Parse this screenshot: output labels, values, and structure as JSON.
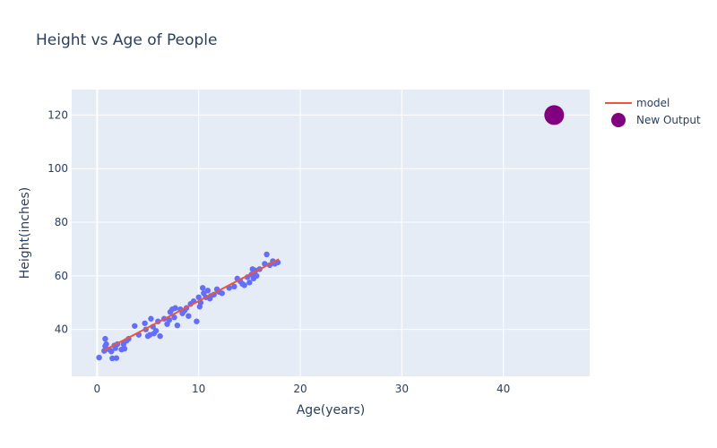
{
  "chart_data": {
    "type": "scatter",
    "title": "Height vs Age of People",
    "xlabel": "Age(years)",
    "ylabel": "Height(inches)",
    "xlim": [
      -2.5,
      48.5
    ],
    "ylim": [
      22.5,
      129.5
    ],
    "xticks": [
      0,
      10,
      20,
      30,
      40
    ],
    "yticks": [
      40,
      60,
      80,
      100,
      120
    ],
    "grid": true,
    "legend_position": "top-right",
    "plot_background": "#E5ECF6",
    "series": [
      {
        "name": "",
        "kind": "scatter",
        "color": "#636EFA",
        "points": [
          [
            0.2,
            29.5
          ],
          [
            0.7,
            32.0
          ],
          [
            0.8,
            33.8
          ],
          [
            0.8,
            36.5
          ],
          [
            0.9,
            34.5
          ],
          [
            1.2,
            32.5
          ],
          [
            1.4,
            31.8
          ],
          [
            1.5,
            29.2
          ],
          [
            1.7,
            34.0
          ],
          [
            1.8,
            33.0
          ],
          [
            1.9,
            29.3
          ],
          [
            2.0,
            34.5
          ],
          [
            2.4,
            32.5
          ],
          [
            2.6,
            34.5
          ],
          [
            2.7,
            32.8
          ],
          [
            2.9,
            35.8
          ],
          [
            3.1,
            36.5
          ],
          [
            3.7,
            41.3
          ],
          [
            4.1,
            38.0
          ],
          [
            4.7,
            42.3
          ],
          [
            4.8,
            40.0
          ],
          [
            5.0,
            37.5
          ],
          [
            5.2,
            38.0
          ],
          [
            5.3,
            44.0
          ],
          [
            5.5,
            41.0
          ],
          [
            5.6,
            38.5
          ],
          [
            5.8,
            39.5
          ],
          [
            6.0,
            43.0
          ],
          [
            6.2,
            37.5
          ],
          [
            6.6,
            44.0
          ],
          [
            6.9,
            42.0
          ],
          [
            7.1,
            43.5
          ],
          [
            7.2,
            46.5
          ],
          [
            7.4,
            47.5
          ],
          [
            7.6,
            44.5
          ],
          [
            7.7,
            48.0
          ],
          [
            7.9,
            41.5
          ],
          [
            8.2,
            47.5
          ],
          [
            8.4,
            46.0
          ],
          [
            8.6,
            47.0
          ],
          [
            8.8,
            48.0
          ],
          [
            9.0,
            45.0
          ],
          [
            9.2,
            49.5
          ],
          [
            9.5,
            50.5
          ],
          [
            9.8,
            43.0
          ],
          [
            10.0,
            52.0
          ],
          [
            10.1,
            48.5
          ],
          [
            10.2,
            50.0
          ],
          [
            10.4,
            55.5
          ],
          [
            10.5,
            53.5
          ],
          [
            10.7,
            52.0
          ],
          [
            10.9,
            54.5
          ],
          [
            11.1,
            51.5
          ],
          [
            11.2,
            52.5
          ],
          [
            11.5,
            53.0
          ],
          [
            11.8,
            55.0
          ],
          [
            12.0,
            54.0
          ],
          [
            12.3,
            53.5
          ],
          [
            13.0,
            55.5
          ],
          [
            13.5,
            56.0
          ],
          [
            13.8,
            59.0
          ],
          [
            14.1,
            58.0
          ],
          [
            14.3,
            57.0
          ],
          [
            14.5,
            56.5
          ],
          [
            14.8,
            59.5
          ],
          [
            15.0,
            57.5
          ],
          [
            15.2,
            60.5
          ],
          [
            15.3,
            62.5
          ],
          [
            15.4,
            59.0
          ],
          [
            15.5,
            61.0
          ],
          [
            15.6,
            62.0
          ],
          [
            15.7,
            60.0
          ],
          [
            16.0,
            62.5
          ],
          [
            16.5,
            64.5
          ],
          [
            16.7,
            68.0
          ],
          [
            17.0,
            64.0
          ],
          [
            17.3,
            65.5
          ],
          [
            17.5,
            64.5
          ],
          [
            17.8,
            65.0
          ]
        ]
      },
      {
        "name": "model",
        "kind": "line",
        "color": "#EF553B",
        "points": [
          [
            0.7,
            32.2
          ],
          [
            17.9,
            66.2
          ]
        ]
      },
      {
        "name": "New Output",
        "kind": "marker",
        "color": "#800080",
        "points": [
          [
            45,
            120
          ]
        ]
      }
    ]
  }
}
